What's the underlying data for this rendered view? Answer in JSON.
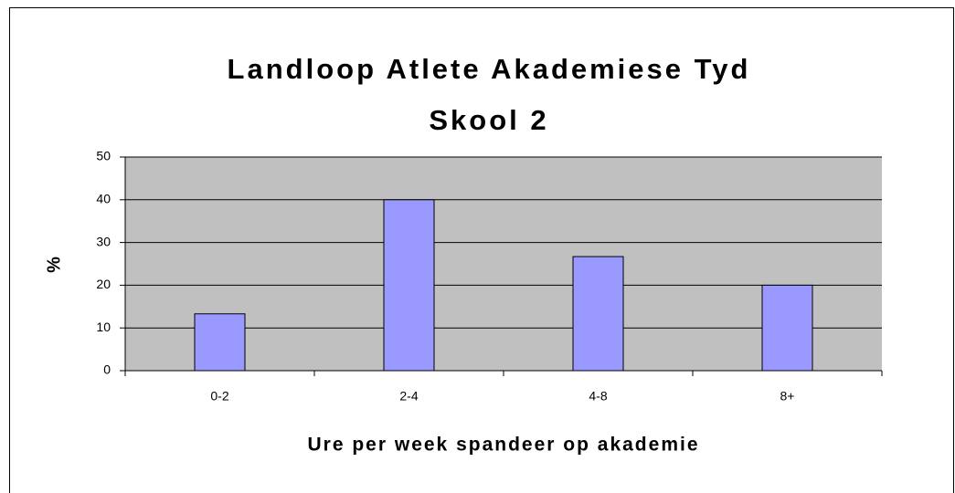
{
  "chart_data": {
    "type": "bar",
    "title": [
      "Landloop Atlete Akademiese Tyd",
      "Skool 2"
    ],
    "x_label": "Ure per week spandeer op akademie",
    "y_label": "%",
    "categories": [
      "0-2",
      "2-4",
      "4-8",
      "8+"
    ],
    "values": [
      13.3,
      40,
      26.7,
      20
    ],
    "color": "#9999ff",
    "plot_background": "#c0c0c0",
    "ylim": [
      0,
      50
    ],
    "yticks": [
      0,
      10,
      20,
      30,
      40,
      50
    ],
    "grid": true
  }
}
